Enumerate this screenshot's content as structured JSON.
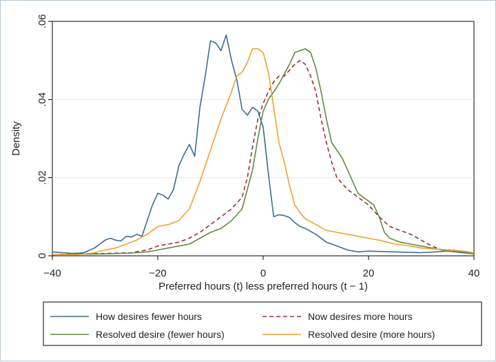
{
  "chart_data": {
    "type": "line",
    "title": "",
    "xlabel": "Preferred hours (t) less preferred hours (t − 1)",
    "ylabel": "Density",
    "xlim": [
      -40,
      40
    ],
    "ylim": [
      0,
      0.06
    ],
    "xticks": [
      -40,
      -20,
      0,
      20,
      40
    ],
    "xtick_labels": [
      "−40",
      "−20",
      "0",
      "20",
      "40"
    ],
    "yticks": [
      0,
      0.02,
      0.04,
      0.06
    ],
    "ytick_labels": [
      "0",
      ".02",
      ".04",
      ".06"
    ],
    "grid": "horizontal",
    "legend_position": "bottom",
    "series": [
      {
        "name": "How desires fewer hours",
        "color": "#3d6a99",
        "dash": "solid",
        "points": [
          [
            -40,
            0.001
          ],
          [
            -38,
            0.0008
          ],
          [
            -36,
            0.0006
          ],
          [
            -34,
            0.0008
          ],
          [
            -32,
            0.002
          ],
          [
            -30,
            0.004
          ],
          [
            -29,
            0.0045
          ],
          [
            -28,
            0.004
          ],
          [
            -27,
            0.0038
          ],
          [
            -26,
            0.005
          ],
          [
            -25,
            0.0048
          ],
          [
            -24,
            0.0055
          ],
          [
            -23,
            0.005
          ],
          [
            -22,
            0.009
          ],
          [
            -21,
            0.013
          ],
          [
            -20,
            0.016
          ],
          [
            -19,
            0.0155
          ],
          [
            -18,
            0.0145
          ],
          [
            -17,
            0.017
          ],
          [
            -16,
            0.023
          ],
          [
            -15,
            0.026
          ],
          [
            -14,
            0.0285
          ],
          [
            -13,
            0.0255
          ],
          [
            -12,
            0.038
          ],
          [
            -11,
            0.046
          ],
          [
            -10,
            0.055
          ],
          [
            -9,
            0.0545
          ],
          [
            -8,
            0.0525
          ],
          [
            -7,
            0.0565
          ],
          [
            -6,
            0.05
          ],
          [
            -5,
            0.045
          ],
          [
            -4,
            0.0375
          ],
          [
            -3,
            0.036
          ],
          [
            -2,
            0.038
          ],
          [
            -1,
            0.037
          ],
          [
            0,
            0.033
          ],
          [
            1,
            0.021
          ],
          [
            2,
            0.01
          ],
          [
            3,
            0.0105
          ],
          [
            4,
            0.0103
          ],
          [
            5,
            0.0098
          ],
          [
            6,
            0.0085
          ],
          [
            7,
            0.0075
          ],
          [
            8,
            0.007
          ],
          [
            10,
            0.0055
          ],
          [
            12,
            0.0035
          ],
          [
            14,
            0.0025
          ],
          [
            16,
            0.0015
          ],
          [
            18,
            0.001
          ],
          [
            20,
            0.0012
          ],
          [
            25,
            0.001
          ],
          [
            30,
            0.0008
          ],
          [
            35,
            0.0012
          ],
          [
            40,
            0.0005
          ]
        ]
      },
      {
        "name": "Now desires more hours",
        "color": "#9b2a3c",
        "dash": "dashed",
        "points": [
          [
            -40,
            0.0003
          ],
          [
            -35,
            0.0005
          ],
          [
            -30,
            0.0006
          ],
          [
            -25,
            0.0008
          ],
          [
            -22,
            0.0015
          ],
          [
            -20,
            0.0025
          ],
          [
            -18,
            0.003
          ],
          [
            -16,
            0.0035
          ],
          [
            -14,
            0.0045
          ],
          [
            -12,
            0.006
          ],
          [
            -10,
            0.008
          ],
          [
            -8,
            0.01
          ],
          [
            -6,
            0.012
          ],
          [
            -4,
            0.015
          ],
          [
            -3,
            0.02
          ],
          [
            -2,
            0.028
          ],
          [
            -1,
            0.035
          ],
          [
            0,
            0.039
          ],
          [
            1,
            0.042
          ],
          [
            2,
            0.0445
          ],
          [
            3,
            0.046
          ],
          [
            4,
            0.046
          ],
          [
            5,
            0.0475
          ],
          [
            6,
            0.049
          ],
          [
            7,
            0.05
          ],
          [
            8,
            0.049
          ],
          [
            9,
            0.046
          ],
          [
            10,
            0.042
          ],
          [
            11,
            0.035
          ],
          [
            12,
            0.029
          ],
          [
            13,
            0.024
          ],
          [
            14,
            0.02
          ],
          [
            16,
            0.017
          ],
          [
            18,
            0.015
          ],
          [
            20,
            0.013
          ],
          [
            22,
            0.01
          ],
          [
            24,
            0.0075
          ],
          [
            26,
            0.0065
          ],
          [
            28,
            0.0055
          ],
          [
            30,
            0.004
          ],
          [
            32,
            0.0025
          ],
          [
            34,
            0.0015
          ],
          [
            36,
            0.0015
          ],
          [
            38,
            0.001
          ],
          [
            40,
            0.0005
          ]
        ]
      },
      {
        "name": "Resolved desire (fewer hours)",
        "color": "#5f8a3d",
        "dash": "solid",
        "points": [
          [
            -40,
            0.0003
          ],
          [
            -35,
            0.0004
          ],
          [
            -30,
            0.0005
          ],
          [
            -25,
            0.0007
          ],
          [
            -22,
            0.001
          ],
          [
            -20,
            0.0015
          ],
          [
            -18,
            0.002
          ],
          [
            -16,
            0.0025
          ],
          [
            -14,
            0.003
          ],
          [
            -12,
            0.0045
          ],
          [
            -10,
            0.006
          ],
          [
            -8,
            0.007
          ],
          [
            -6,
            0.009
          ],
          [
            -4,
            0.012
          ],
          [
            -2,
            0.022
          ],
          [
            -1,
            0.03
          ],
          [
            0,
            0.037
          ],
          [
            1,
            0.04
          ],
          [
            2,
            0.042
          ],
          [
            3,
            0.044
          ],
          [
            4,
            0.0465
          ],
          [
            5,
            0.049
          ],
          [
            6,
            0.052
          ],
          [
            7,
            0.0525
          ],
          [
            8,
            0.053
          ],
          [
            9,
            0.052
          ],
          [
            10,
            0.048
          ],
          [
            11,
            0.042
          ],
          [
            12,
            0.035
          ],
          [
            13,
            0.029
          ],
          [
            14,
            0.027
          ],
          [
            15,
            0.025
          ],
          [
            16,
            0.022
          ],
          [
            18,
            0.016
          ],
          [
            20,
            0.014
          ],
          [
            21,
            0.013
          ],
          [
            22,
            0.01
          ],
          [
            23,
            0.006
          ],
          [
            24,
            0.0045
          ],
          [
            26,
            0.0035
          ],
          [
            28,
            0.003
          ],
          [
            30,
            0.0025
          ],
          [
            32,
            0.002
          ],
          [
            35,
            0.0012
          ],
          [
            38,
            0.001
          ],
          [
            40,
            0.0005
          ]
        ]
      },
      {
        "name": "Resolved desire (more hours)",
        "color": "#f0a02c",
        "dash": "solid",
        "points": [
          [
            -40,
            0.0003
          ],
          [
            -35,
            0.0003
          ],
          [
            -32,
            0.0008
          ],
          [
            -30,
            0.0015
          ],
          [
            -28,
            0.002
          ],
          [
            -26,
            0.003
          ],
          [
            -24,
            0.004
          ],
          [
            -22,
            0.0055
          ],
          [
            -20,
            0.0075
          ],
          [
            -18,
            0.008
          ],
          [
            -16,
            0.009
          ],
          [
            -14,
            0.012
          ],
          [
            -12,
            0.019
          ],
          [
            -10,
            0.027
          ],
          [
            -8,
            0.035
          ],
          [
            -6,
            0.042
          ],
          [
            -5,
            0.046
          ],
          [
            -4,
            0.047
          ],
          [
            -3,
            0.0495
          ],
          [
            -2,
            0.053
          ],
          [
            -1,
            0.053
          ],
          [
            0,
            0.052
          ],
          [
            1,
            0.047
          ],
          [
            2,
            0.038
          ],
          [
            3,
            0.029
          ],
          [
            4,
            0.024
          ],
          [
            5,
            0.018
          ],
          [
            6,
            0.013
          ],
          [
            7,
            0.011
          ],
          [
            8,
            0.0095
          ],
          [
            10,
            0.008
          ],
          [
            12,
            0.0065
          ],
          [
            14,
            0.006
          ],
          [
            16,
            0.0055
          ],
          [
            18,
            0.005
          ],
          [
            20,
            0.0045
          ],
          [
            22,
            0.004
          ],
          [
            25,
            0.003
          ],
          [
            28,
            0.0025
          ],
          [
            30,
            0.002
          ],
          [
            32,
            0.0018
          ],
          [
            35,
            0.0015
          ],
          [
            38,
            0.0012
          ],
          [
            40,
            0.0008
          ]
        ]
      }
    ]
  }
}
